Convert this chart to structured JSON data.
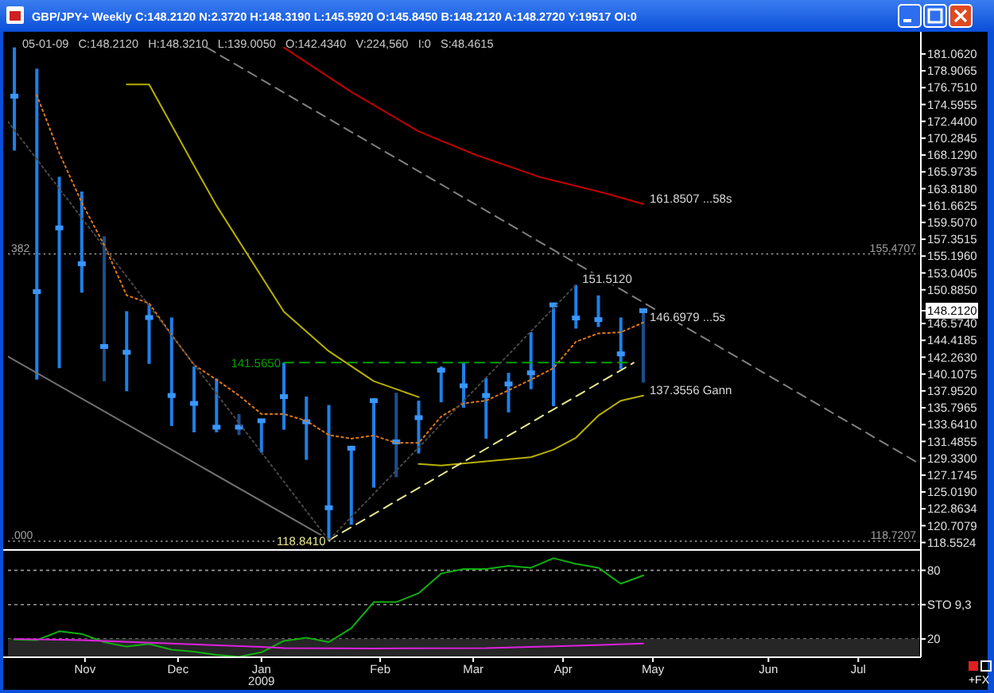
{
  "chart_data": [
    {
      "type": "bar",
      "title": "GBP/JPY+ Weekly C:148.2120 N:2.3720 H:148.3190 L:145.5920 O:145.8450 B:148.2120 A:148.2720 Y:19517 OI:0",
      "subtitle": "05-01-09   C:148.2120   H:148.3210   L:139.0050   O:142.4340   V:224,560   I:0   S:48.4615",
      "x": [
        "2008-10-17",
        "2008-10-24",
        "2008-10-31",
        "2008-11-07",
        "2008-11-14",
        "2008-11-21",
        "2008-11-28",
        "2008-12-05",
        "2008-12-12",
        "2008-12-19",
        "2008-12-26",
        "2009-01-02",
        "2009-01-09",
        "2009-01-16",
        "2009-01-23",
        "2009-01-30",
        "2009-02-06",
        "2009-02-13",
        "2009-02-20",
        "2009-02-27",
        "2009-03-06",
        "2009-03-13",
        "2009-03-20",
        "2009-03-27",
        "2009-04-03",
        "2009-04-10",
        "2009-04-17",
        "2009-04-24",
        "2009-05-01"
      ],
      "xlim": [
        "2008-10-15",
        "2009-07-26"
      ],
      "ylim": [
        117.6,
        183.49
      ],
      "yticks": [
        {
          "value": 181.062,
          "label": "181.0620"
        },
        {
          "value": 178.9065,
          "label": "178.9065"
        },
        {
          "value": 176.751,
          "label": "176.7510"
        },
        {
          "value": 174.5955,
          "label": "174.5955"
        },
        {
          "value": 172.44,
          "label": "172.4400"
        },
        {
          "value": 170.2845,
          "label": "170.2845"
        },
        {
          "value": 168.129,
          "label": "168.1290"
        },
        {
          "value": 165.9735,
          "label": "165.9735"
        },
        {
          "value": 163.818,
          "label": "163.8180"
        },
        {
          "value": 161.6625,
          "label": "161.6625"
        },
        {
          "value": 159.507,
          "label": "159.5070"
        },
        {
          "value": 157.3515,
          "label": "157.3515"
        },
        {
          "value": 155.196,
          "label": "155.1960"
        },
        {
          "value": 153.0405,
          "label": "153.0405"
        },
        {
          "value": 150.885,
          "label": "150.8850"
        },
        {
          "value": 148.212,
          "label": "148.2120"
        },
        {
          "value": 146.574,
          "label": "146.5740"
        },
        {
          "value": 144.4185,
          "label": "144.4185"
        },
        {
          "value": 142.263,
          "label": "142.2630"
        },
        {
          "value": 140.1075,
          "label": "140.1075"
        },
        {
          "value": 137.952,
          "label": "137.9520"
        },
        {
          "value": 135.7965,
          "label": "135.7965"
        },
        {
          "value": 133.641,
          "label": "133.6410"
        },
        {
          "value": 131.4855,
          "label": "131.4855"
        },
        {
          "value": 129.33,
          "label": "129.3300"
        },
        {
          "value": 127.1745,
          "label": "127.1745"
        },
        {
          "value": 125.019,
          "label": "125.0190"
        },
        {
          "value": 122.8634,
          "label": "122.8634"
        },
        {
          "value": 120.7079,
          "label": "120.7079"
        },
        {
          "value": 118.5524,
          "label": "118.5524"
        }
      ],
      "tick_labels": "y",
      "series": [
        {
          "colors": [
            "#1e80e8",
            "#1e80e8",
            "#1e80e8",
            "#1e80e8",
            "#1a4f8c",
            "#1e80e8",
            "#1e80e8",
            "#1e80e8",
            "#1e80e8",
            "#1e80e8",
            "#1a4f8c",
            "#1e80e8",
            "#1e80e8",
            "#1e80e8",
            "#1e80e8",
            "#1e80e8",
            "#1e80e8",
            "#1a4f8c",
            "#1e80e8",
            "#1e80e8",
            "#1e80e8",
            "#1e80e8",
            "#1e80e8",
            "#1e80e8",
            "#1e80e8",
            "#1e80e8",
            "#1e80e8",
            "#1e80e8",
            "#1a4f8c"
          ],
          "base": [
            168.7,
            139.39,
            140.86,
            150.51,
            139.18,
            137.91,
            141.41,
            133.46,
            132.65,
            132.65,
            132.3,
            130.08,
            132.98,
            129.13,
            118.841,
            120.83,
            125.57,
            126.91,
            129.94,
            136.49,
            135.8,
            131.84,
            135.2,
            138.17,
            136.0,
            145.92,
            146.12,
            140.74,
            139.005
          ],
          "values": [
            13.2,
            39.79,
            24.48,
            12.95,
            18.56,
            10.24,
            7.55,
            13.88,
            8.42,
            6.88,
            2.7,
            4.25,
            8.585,
            8.09,
            17.309,
            9.92,
            11.45,
            10.8,
            6.76,
            4.58,
            5.8,
            7.75,
            5.06,
            7.29,
            13.03,
            5.592,
            4.05,
            6.6,
            9.316
          ]
        },
        {
          "type": "scatter",
          "color": "#3a96ff",
          "marker": "square",
          "values": [
            175.66,
            150.65,
            158.81,
            154.22,
            143.63,
            142.89,
            147.34,
            137.36,
            136.35,
            133.31,
            133.31,
            134.13,
            137.22,
            134.0,
            123.0,
            130.62,
            136.7,
            131.42,
            134.53,
            140.6,
            138.6,
            137.36,
            138.84,
            140.26,
            148.96,
            147.28,
            147.07,
            142.69,
            148.212
          ]
        },
        {
          "type": "line",
          "color": "#e07818",
          "line_style": "dotted",
          "values": [
            null,
            175.8,
            168.37,
            162.05,
            156.59,
            150.18,
            149.16,
            145.12,
            141.27,
            139.38,
            137.36,
            134.99,
            134.99,
            134.12,
            132.3,
            131.84,
            132.24,
            131.29,
            131.29,
            134.67,
            136.35,
            136.7,
            138.03,
            139.39,
            140.86,
            144.24,
            145.31,
            145.45,
            146.6979
          ]
        },
        {
          "type": "line",
          "color": "#b8b000",
          "x": [
            "2008-11-21",
            "2008-11-28",
            "2008-12-12",
            "2008-12-19",
            "2009-01-09",
            "2009-01-23",
            "2009-02-06",
            "2009-02-20"
          ],
          "values": [
            177.16,
            177.16,
            166.76,
            161.64,
            148.08,
            143.03,
            139.19,
            137.16
          ]
        },
        {
          "type": "line",
          "color": "#b8b000",
          "x": [
            "2009-02-20",
            "2009-02-27",
            "2009-03-27",
            "2009-04-03",
            "2009-04-10",
            "2009-04-17",
            "2009-04-24",
            "2009-05-01"
          ],
          "values": [
            128.6,
            128.4,
            129.47,
            130.42,
            131.96,
            134.79,
            136.7,
            137.3556
          ]
        },
        {
          "type": "line",
          "color": "#e8e890",
          "line_style": "dashed",
          "x": [
            "2009-01-23",
            "2009-04-28"
          ],
          "values": [
            118.841,
            141.55
          ]
        },
        {
          "type": "line",
          "color": "#00a000",
          "line_style": "dashed",
          "x": [
            "2009-01-09",
            "2009-04-26"
          ],
          "values": [
            141.565,
            141.565
          ]
        },
        {
          "type": "line",
          "color": "#c00000",
          "x": [
            "2009-01-09",
            "2009-01-30",
            "2009-02-20",
            "2009-03-10",
            "2009-03-30",
            "2009-04-19",
            "2009-05-01"
          ],
          "values": [
            181.87,
            176.21,
            171.15,
            168.11,
            165.28,
            163.26,
            161.8507
          ]
        },
        {
          "type": "line",
          "color": "#808080",
          "line_style": "dashed",
          "x": [
            "2008-12-16",
            "2009-07-25"
          ],
          "values": [
            181.87,
            128.89
          ]
        },
        {
          "type": "line",
          "color": "#707070",
          "x": [
            "2008-10-15",
            "2009-01-23"
          ],
          "values": [
            142.36,
            118.94
          ]
        },
        {
          "type": "line",
          "color": "#484848",
          "line_style": "dotted",
          "x": [
            "2008-10-15",
            "2009-01-23",
            "2009-04-10"
          ],
          "values": [
            172.4,
            118.841,
            151.512
          ]
        }
      ],
      "ref_lines": [
        {
          "axis": "y",
          "value": 155.4707,
          "label": "155.4707",
          "color": "#a0a0a0",
          "line_style": "dotted"
        },
        {
          "axis": "y",
          "value": 118.7207,
          "label": "118.7207",
          "color": "#a0a0a0",
          "line_style": "dotted"
        }
      ],
      "annotations": [
        {
          "text": "382",
          "y": 155.4707
        },
        {
          "text": ".000",
          "y": 118.7207
        },
        {
          "text": "141.5650",
          "x": "2009-01-09",
          "y": 141.565
        },
        {
          "text": "151.5120",
          "x": "2009-04-10",
          "y": 151.512
        },
        {
          "text": "118.8410",
          "x": "2009-01-23",
          "y": 118.841
        },
        {
          "text": "161.8507 ...58s",
          "x": "2009-05-01",
          "y": 161.8507
        },
        {
          "text": "146.6979 ...5s",
          "x": "2009-05-01",
          "y": 146.6979
        },
        {
          "text": "137.3556 Gann",
          "x": "2009-05-01",
          "y": 137.3556
        }
      ]
    },
    {
      "type": "line",
      "x": [
        "2008-10-17",
        "2008-10-24",
        "2008-10-31",
        "2008-11-07",
        "2008-11-14",
        "2008-11-21",
        "2008-11-28",
        "2008-12-05",
        "2008-12-12",
        "2008-12-19",
        "2008-12-26",
        "2009-01-02",
        "2009-01-09",
        "2009-01-16",
        "2009-01-23",
        "2009-01-30",
        "2009-02-06",
        "2009-02-13",
        "2009-02-20",
        "2009-02-27",
        "2009-03-06",
        "2009-03-13",
        "2009-03-20",
        "2009-03-27",
        "2009-04-03",
        "2009-04-10",
        "2009-04-17",
        "2009-04-24",
        "2009-05-01"
      ],
      "xlim": [
        "2008-10-15",
        "2009-07-26"
      ],
      "ylim": [
        4,
        96.4
      ],
      "yticks": [
        20,
        {
          "value": 50,
          "label": "STO 9,3"
        },
        80
      ],
      "xticks": [
        {
          "value": "2008-11-08",
          "label": "Nov"
        },
        {
          "value": "2008-12-07",
          "label": "Dec"
        },
        {
          "value": "2009-01-02",
          "label": "Jan\n2009"
        },
        {
          "value": "2009-02-08",
          "label": "Feb"
        },
        {
          "value": "2009-03-09",
          "label": "Mar"
        },
        {
          "value": "2009-04-06",
          "label": "Apr"
        },
        {
          "value": "2009-05-04",
          "label": "May"
        },
        {
          "value": "2009-06-09",
          "label": "Jun"
        },
        {
          "value": "2009-07-07",
          "label": "Jul"
        }
      ],
      "grid": "y",
      "series": [
        {
          "color": "#10b010",
          "values": [
            19.5,
            18.9,
            26.7,
            24.4,
            17.2,
            13.3,
            15.6,
            10.6,
            8.9,
            6.1,
            4.4,
            8.3,
            18.3,
            21.1,
            17.2,
            29.4,
            52.2,
            52.2,
            60,
            77.2,
            81.1,
            81.1,
            83.9,
            82.2,
            90.6,
            85.6,
            82.2,
            68.3,
            75.6
          ]
        },
        {
          "color": "#e020e0",
          "x": [
            "2008-10-17",
            "2008-11-07",
            "2008-12-05",
            "2009-01-02",
            "2009-01-09",
            "2009-02-06",
            "2009-03-13",
            "2009-04-10",
            "2009-05-01"
          ],
          "values": [
            20,
            19,
            16,
            13,
            12,
            11.7,
            12,
            14,
            16
          ]
        }
      ],
      "bands": [
        {
          "axis": "y",
          "from": 4,
          "to": 20,
          "color": "#262626"
        }
      ],
      "annotations": [
        "+FX"
      ]
    }
  ]
}
